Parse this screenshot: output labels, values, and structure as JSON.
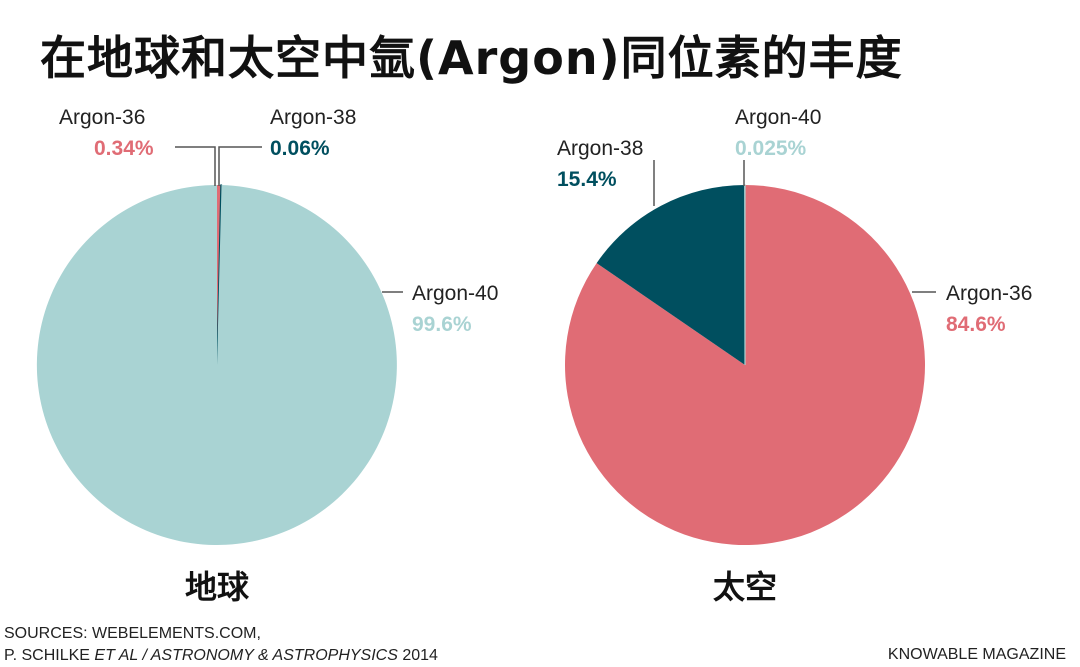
{
  "title": "在地球和太空中氩(Argon)同位素的丰度",
  "colors": {
    "argon36": "#e06c75",
    "argon38": "#004f5f",
    "argon40": "#a9d3d3",
    "leader": "#555555"
  },
  "chart_data": [
    {
      "type": "pie",
      "label": "地球",
      "slices": [
        {
          "name": "Argon-36",
          "value": 0.34,
          "display": "0.34%",
          "color": "#e06c75"
        },
        {
          "name": "Argon-38",
          "value": 0.06,
          "display": "0.06%",
          "color": "#004f5f"
        },
        {
          "name": "Argon-40",
          "value": 99.6,
          "display": "99.6%",
          "color": "#a9d3d3"
        }
      ]
    },
    {
      "type": "pie",
      "label": "太空",
      "slices": [
        {
          "name": "Argon-36",
          "value": 84.6,
          "display": "84.6%",
          "color": "#e06c75"
        },
        {
          "name": "Argon-38",
          "value": 15.4,
          "display": "15.4%",
          "color": "#004f5f"
        },
        {
          "name": "Argon-40",
          "value": 0.025,
          "display": "0.025%",
          "color": "#a9d3d3"
        }
      ]
    }
  ],
  "footer": {
    "sources_line1": "SOURCES: WEBELEMENTS.COM,",
    "sources_line2_prefix": "P. SCHILKE ",
    "sources_line2_italic": "ET AL / ASTRONOMY & ASTROPHYSICS",
    "sources_line2_suffix": " 2014",
    "credit": "KNOWABLE MAGAZINE"
  }
}
